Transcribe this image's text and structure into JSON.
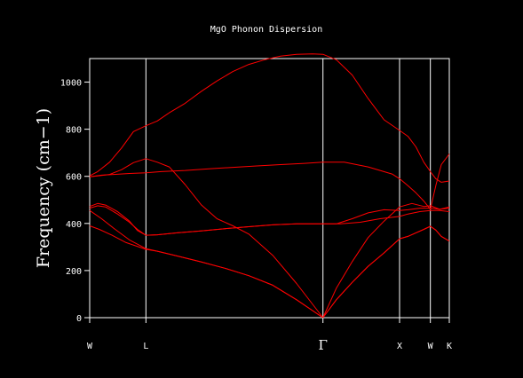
{
  "chart_data": {
    "type": "line",
    "title": "MgO Phonon Dispersion",
    "xlabel": "",
    "ylabel": "Frequency (cm−1)",
    "ylim": [
      0,
      1100
    ],
    "yticks": [
      0,
      200,
      400,
      600,
      800,
      1000
    ],
    "kpoints": [
      {
        "label": "W",
        "pos": 0.0
      },
      {
        "label": "L",
        "pos": 0.707
      },
      {
        "label": "Γ",
        "pos": 2.932
      },
      {
        "label": "X",
        "pos": 3.895
      },
      {
        "label": "W",
        "pos": 4.282
      },
      {
        "label": "K",
        "pos": 4.52
      }
    ],
    "grid": false,
    "colors": {
      "background": "#000000",
      "axes": "#ffffff",
      "bands": "#ff0000"
    },
    "series": [
      {
        "x": [
          0,
          0.12,
          0.28,
          0.45,
          0.707,
          0.85,
          1.1,
          1.4,
          1.7,
          2.0,
          2.3,
          2.6,
          2.932,
          3.1,
          3.3,
          3.5,
          3.7,
          3.895,
          4.0,
          4.1,
          4.2,
          4.282,
          4.35,
          4.42,
          4.52
        ],
        "y": [
          390,
          375,
          350,
          320,
          290,
          282,
          262,
          237,
          210,
          178,
          138,
          76,
          0,
          76,
          150,
          218,
          275,
          335,
          345,
          360,
          375,
          388,
          372,
          345,
          325
        ]
      },
      {
        "x": [
          0,
          0.15,
          0.3,
          0.5,
          0.707,
          0.85,
          1.1,
          1.4,
          1.7,
          2.0,
          2.3,
          2.6,
          2.932,
          3.1,
          3.3,
          3.5,
          3.7,
          3.895,
          4.0,
          4.1,
          4.2,
          4.282,
          4.35,
          4.42,
          4.52
        ],
        "y": [
          455,
          420,
          380,
          330,
          293,
          282,
          262,
          237,
          210,
          178,
          138,
          76,
          0,
          76,
          150,
          218,
          275,
          335,
          345,
          360,
          375,
          388,
          372,
          345,
          325
        ]
      },
      {
        "x": [
          0,
          0.1,
          0.2,
          0.35,
          0.5,
          0.6,
          0.707,
          0.85,
          1.1,
          1.4,
          1.7,
          2.0,
          2.3,
          2.6,
          2.932,
          3.15,
          3.4,
          3.65,
          3.895,
          4.0,
          4.15,
          4.282,
          4.4,
          4.52
        ],
        "y": [
          465,
          475,
          470,
          440,
          405,
          375,
          350,
          352,
          360,
          368,
          378,
          386,
          394,
          398,
          398,
          398,
          405,
          420,
          430,
          440,
          450,
          455,
          455,
          450
        ]
      },
      {
        "x": [
          0,
          0.1,
          0.2,
          0.35,
          0.5,
          0.6,
          0.707,
          0.85,
          1.1,
          1.4,
          1.7,
          2.0,
          2.3,
          2.6,
          2.932,
          3.1,
          3.3,
          3.5,
          3.7,
          3.895,
          4.0,
          4.15,
          4.282,
          4.4,
          4.52
        ],
        "y": [
          472,
          485,
          478,
          450,
          410,
          370,
          350,
          352,
          360,
          368,
          378,
          386,
          394,
          398,
          398,
          398,
          420,
          445,
          458,
          455,
          458,
          465,
          465,
          460,
          465
        ]
      },
      {
        "x": [
          0,
          0.1,
          0.25,
          0.4,
          0.55,
          0.707,
          0.85,
          1.0,
          1.2,
          1.4,
          1.6,
          1.8,
          2.0,
          2.3,
          2.6,
          2.932,
          3.1,
          3.3,
          3.5,
          3.7,
          3.895,
          4.05,
          4.2,
          4.282,
          4.4,
          4.52
        ],
        "y": [
          598,
          602,
          608,
          628,
          658,
          675,
          660,
          640,
          565,
          480,
          420,
          390,
          355,
          265,
          145,
          0,
          125,
          238,
          340,
          410,
          470,
          485,
          472,
          475,
          460,
          470
        ]
      },
      {
        "x": [
          0,
          0.1,
          0.25,
          0.4,
          0.55,
          0.707,
          0.85,
          1.0,
          1.2,
          1.4,
          1.6,
          1.8,
          2.0,
          2.2,
          2.4,
          2.6,
          2.8,
          2.932,
          3.1,
          3.3,
          3.5,
          3.7,
          3.895,
          4.0,
          4.1,
          4.2,
          4.282,
          4.35,
          4.42,
          4.52
        ],
        "y": [
          602,
          620,
          660,
          720,
          790,
          815,
          835,
          870,
          910,
          960,
          1005,
          1045,
          1075,
          1095,
          1110,
          1118,
          1120,
          1118,
          1095,
          1030,
          930,
          840,
          795,
          770,
          725,
          660,
          620,
          590,
          575,
          580
        ]
      },
      {
        "x": [
          0,
          0.15,
          0.3,
          0.5,
          0.707,
          0.9,
          1.2,
          1.5,
          1.8,
          2.1,
          2.4,
          2.7,
          2.932,
          3.2,
          3.5,
          3.8,
          3.895,
          4.0,
          4.1,
          4.2,
          4.282,
          4.35,
          4.42,
          4.52
        ],
        "y": [
          598,
          605,
          608,
          612,
          615,
          620,
          625,
          632,
          638,
          644,
          650,
          655,
          660,
          660,
          640,
          610,
          590,
          560,
          530,
          495,
          460,
          560,
          650,
          695
        ]
      }
    ]
  }
}
